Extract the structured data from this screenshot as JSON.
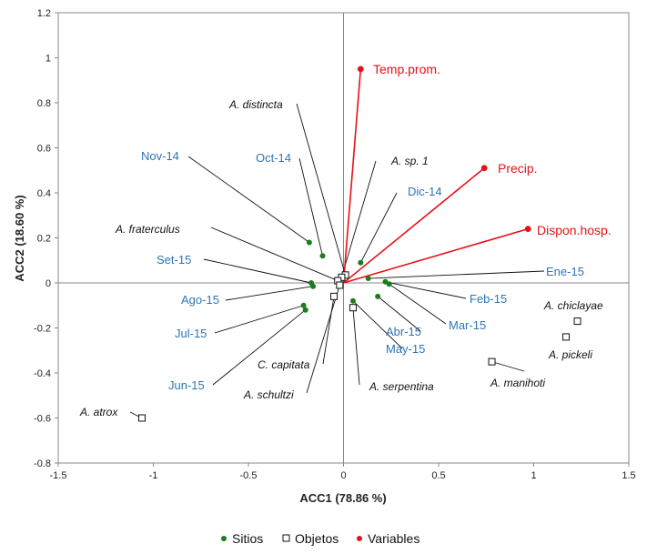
{
  "chart_data": {
    "type": "scatter",
    "title": "",
    "xlabel": "ACC1 (78.86 %)",
    "ylabel": "ACC2 (18.60 %)",
    "xlim": [
      -1.5,
      1.5
    ],
    "ylim": [
      -0.8,
      1.2
    ],
    "x_ticks": [
      -1.5,
      -1,
      -0.5,
      0,
      0.5,
      1,
      1.5
    ],
    "y_ticks": [
      -0.8,
      -0.6,
      -0.4,
      -0.2,
      0,
      0.2,
      0.4,
      0.6,
      0.8,
      1,
      1.2
    ],
    "x_tick_labels": [
      "-1.5",
      "-1",
      "-0.5",
      "0",
      "0.5",
      "1",
      "1.5"
    ],
    "y_tick_labels": [
      "-0.8",
      "-0.6",
      "-0.4",
      "-0.2",
      "0",
      "0.2",
      "0.4",
      "0.6",
      "0.8",
      "1",
      "1.2"
    ],
    "grid": false,
    "legend_position": "bottom",
    "colors": {
      "sitios": "#1E7B1E",
      "variables": "#E8101A",
      "site_label": "#2E75B6",
      "species_label": "#111111",
      "objetos": "#111111"
    },
    "legend": [
      {
        "key": "sitios",
        "label": "Sitios",
        "marker": "dot"
      },
      {
        "key": "objetos",
        "label": "Objetos",
        "marker": "square"
      },
      {
        "key": "variables",
        "label": "Variables",
        "marker": "dot"
      }
    ],
    "series": [
      {
        "key": "sitios",
        "name": "Sitios",
        "points": [
          {
            "label": "Nov-14",
            "x": -0.18,
            "y": 0.18
          },
          {
            "label": "Oct-14",
            "x": -0.11,
            "y": 0.12
          },
          {
            "label": "Dic-14",
            "x": 0.09,
            "y": 0.09
          },
          {
            "label": "Ene-15",
            "x": 0.13,
            "y": 0.02
          },
          {
            "label": "Feb-15",
            "x": 0.22,
            "y": 0.005
          },
          {
            "label": "Mar-15",
            "x": 0.24,
            "y": -0.005
          },
          {
            "label": "Abr-15",
            "x": 0.18,
            "y": -0.06
          },
          {
            "label": "May-15",
            "x": 0.05,
            "y": -0.08
          },
          {
            "label": "Jun-15",
            "x": -0.2,
            "y": -0.12
          },
          {
            "label": "Jul-15",
            "x": -0.21,
            "y": -0.1
          },
          {
            "label": "Ago-15",
            "x": -0.16,
            "y": -0.015
          },
          {
            "label": "Set-15",
            "x": -0.17,
            "y": 0.0
          }
        ]
      },
      {
        "key": "objetos",
        "name": "Objetos",
        "points": [
          {
            "label": "A. atrox",
            "x": -1.06,
            "y": -0.6
          },
          {
            "label": "A. chiclayae",
            "x": 1.23,
            "y": -0.17
          },
          {
            "label": "A. pickeli",
            "x": 1.17,
            "y": -0.24
          },
          {
            "label": "A. manihoti",
            "x": 0.78,
            "y": -0.35
          },
          {
            "label": "A. distincta",
            "x": 0.01,
            "y": 0.035
          },
          {
            "label": "A. sp. 1",
            "x": -0.01,
            "y": 0.025
          },
          {
            "label": "A. fraterculus",
            "x": -0.03,
            "y": 0.01
          },
          {
            "label": "C. capitata",
            "x": -0.05,
            "y": -0.06
          },
          {
            "label": "A. schultzi",
            "x": -0.02,
            "y": -0.01
          },
          {
            "label": "A. serpentina",
            "x": 0.05,
            "y": -0.11
          }
        ]
      },
      {
        "key": "variables",
        "name": "Variables",
        "points": [
          {
            "label": "Temp.prom.",
            "x": 0.09,
            "y": 0.95
          },
          {
            "label": "Precip.",
            "x": 0.74,
            "y": 0.51
          },
          {
            "label": "Dispon.hosp.",
            "x": 0.97,
            "y": 0.24
          }
        ]
      }
    ],
    "annotations": [
      {
        "text": "Temp.prom.",
        "series": "variables",
        "point": "Temp.prom."
      },
      {
        "text": "Precip.",
        "series": "variables",
        "point": "Precip."
      },
      {
        "text": "Dispon.hosp.",
        "series": "variables",
        "point": "Dispon.hosp."
      },
      {
        "text": "A. distincta",
        "series": "objetos",
        "point": "A. distincta"
      },
      {
        "text": "A. sp. 1",
        "series": "objetos",
        "point": "A. sp. 1"
      },
      {
        "text": "A. fraterculus",
        "series": "objetos",
        "point": "A. fraterculus"
      },
      {
        "text": "C. capitata",
        "series": "objetos",
        "point": "C. capitata"
      },
      {
        "text": "A. schultzi",
        "series": "objetos",
        "point": "A. schultzi"
      },
      {
        "text": "A. serpentina",
        "series": "objetos",
        "point": "A. serpentina"
      },
      {
        "text": "A. atrox",
        "series": "objetos",
        "point": "A. atrox"
      },
      {
        "text": "A. chiclayae",
        "series": "objetos",
        "point": "A. chiclayae"
      },
      {
        "text": "A. pickeli",
        "series": "objetos",
        "point": "A. pickeli"
      },
      {
        "text": "A. manihoti",
        "series": "objetos",
        "point": "A. manihoti"
      },
      {
        "text": "Nov-14",
        "series": "sitios",
        "point": "Nov-14"
      },
      {
        "text": "Oct-14",
        "series": "sitios",
        "point": "Oct-14"
      },
      {
        "text": "Dic-14",
        "series": "sitios",
        "point": "Dic-14"
      },
      {
        "text": "Ene-15",
        "series": "sitios",
        "point": "Ene-15"
      },
      {
        "text": "Feb-15",
        "series": "sitios",
        "point": "Feb-15"
      },
      {
        "text": "Mar-15",
        "series": "sitios",
        "point": "Mar-15"
      },
      {
        "text": "Abr-15",
        "series": "sitios",
        "point": "Abr-15"
      },
      {
        "text": "May-15",
        "series": "sitios",
        "point": "May-15"
      },
      {
        "text": "Jun-15",
        "series": "sitios",
        "point": "Jun-15"
      },
      {
        "text": "Jul-15",
        "series": "sitios",
        "point": "Jul-15"
      },
      {
        "text": "Ago-15",
        "series": "sitios",
        "point": "Ago-15"
      },
      {
        "text": "Set-15",
        "series": "sitios",
        "point": "Set-15"
      }
    ]
  }
}
